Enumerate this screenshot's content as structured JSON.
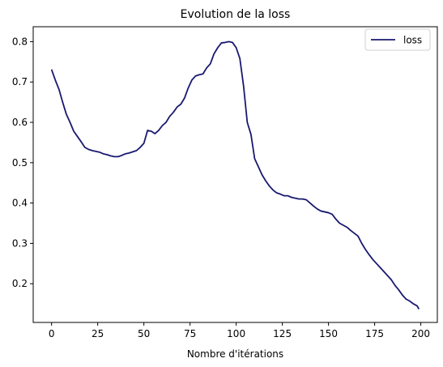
{
  "chart_data": {
    "type": "line",
    "title": "Evolution de la loss",
    "xlabel": "Nombre d'itérations",
    "ylabel": "",
    "xlim": [
      -9.95,
      208.95
    ],
    "ylim": [
      0.104,
      0.837
    ],
    "xticks": [
      0,
      25,
      50,
      75,
      100,
      125,
      150,
      175,
      200
    ],
    "yticks": [
      0.2,
      0.3,
      0.4,
      0.5,
      0.6,
      0.7,
      0.8
    ],
    "grid": false,
    "legend_position": "top-right",
    "colors": {
      "line": "#191970",
      "axes": "#000000"
    },
    "series": [
      {
        "name": "loss",
        "x": [
          0,
          2,
          4,
          6,
          8,
          10,
          12,
          14,
          16,
          18,
          20,
          22,
          24,
          26,
          28,
          30,
          32,
          34,
          36,
          38,
          40,
          42,
          44,
          46,
          48,
          50,
          52,
          54,
          56,
          58,
          60,
          62,
          64,
          66,
          68,
          70,
          72,
          74,
          76,
          78,
          80,
          82,
          84,
          86,
          88,
          90,
          92,
          94,
          96,
          98,
          100,
          102,
          104,
          106,
          108,
          110,
          112,
          114,
          116,
          118,
          120,
          122,
          124,
          126,
          128,
          130,
          132,
          134,
          136,
          138,
          140,
          142,
          144,
          146,
          148,
          150,
          152,
          154,
          156,
          158,
          160,
          162,
          164,
          166,
          168,
          170,
          172,
          174,
          176,
          178,
          180,
          182,
          184,
          186,
          188,
          190,
          192,
          194,
          196,
          198,
          199
        ],
        "values": [
          0.731,
          0.705,
          0.682,
          0.65,
          0.62,
          0.6,
          0.578,
          0.565,
          0.552,
          0.538,
          0.533,
          0.53,
          0.528,
          0.526,
          0.522,
          0.52,
          0.517,
          0.515,
          0.515,
          0.518,
          0.522,
          0.524,
          0.527,
          0.53,
          0.538,
          0.548,
          0.58,
          0.578,
          0.572,
          0.58,
          0.592,
          0.6,
          0.615,
          0.625,
          0.638,
          0.645,
          0.66,
          0.685,
          0.705,
          0.715,
          0.718,
          0.72,
          0.735,
          0.745,
          0.77,
          0.785,
          0.797,
          0.798,
          0.8,
          0.798,
          0.785,
          0.758,
          0.69,
          0.6,
          0.57,
          0.51,
          0.49,
          0.47,
          0.455,
          0.442,
          0.432,
          0.425,
          0.422,
          0.418,
          0.418,
          0.414,
          0.412,
          0.41,
          0.41,
          0.408,
          0.4,
          0.392,
          0.385,
          0.38,
          0.378,
          0.376,
          0.372,
          0.36,
          0.35,
          0.345,
          0.34,
          0.332,
          0.325,
          0.318,
          0.3,
          0.285,
          0.272,
          0.26,
          0.25,
          0.24,
          0.23,
          0.22,
          0.21,
          0.196,
          0.185,
          0.172,
          0.162,
          0.157,
          0.15,
          0.145,
          0.137
        ]
      }
    ]
  }
}
